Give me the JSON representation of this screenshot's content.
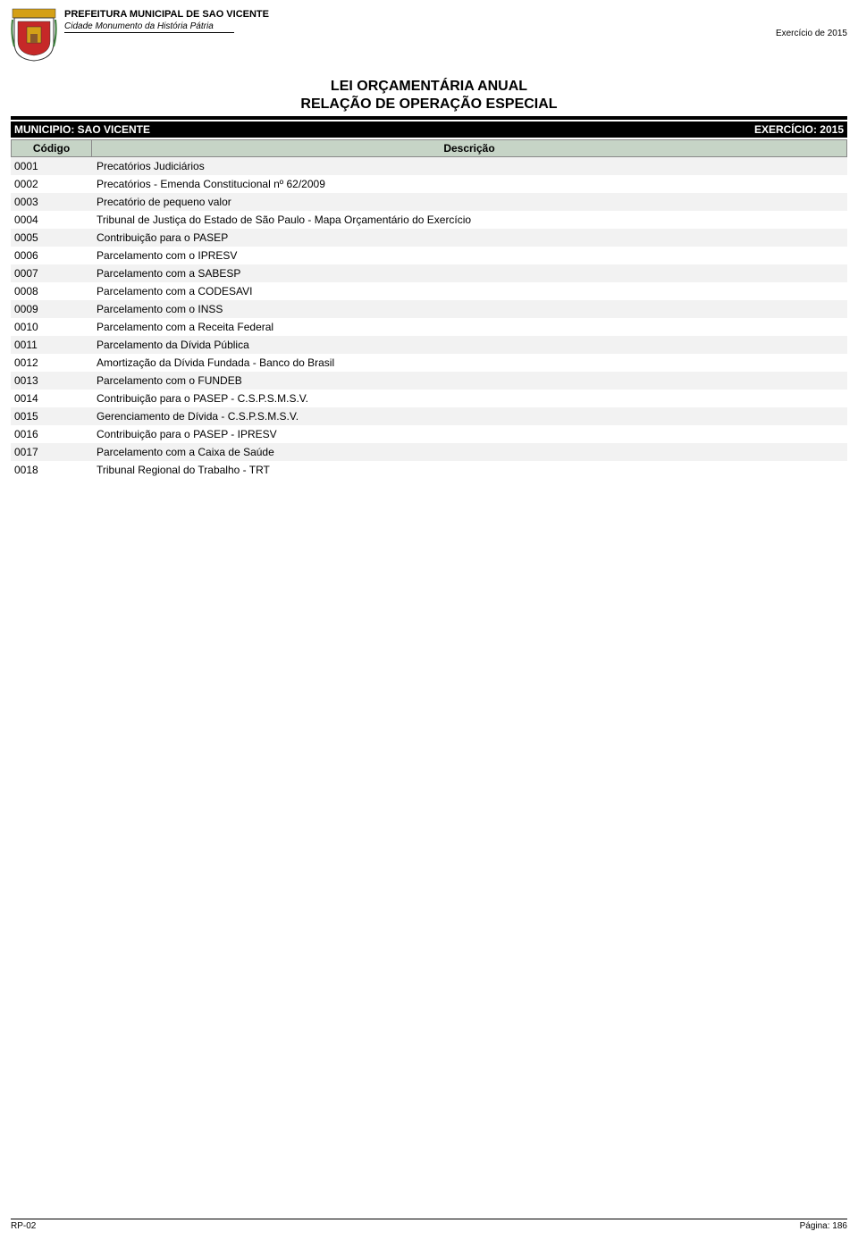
{
  "header": {
    "org_name": "PREFEITURA MUNICIPAL DE SAO VICENTE",
    "tagline": "Cidade Monumento da História Pátria",
    "exercise_year": "Exercício de 2015"
  },
  "title": {
    "line1": "LEI ORÇAMENTÁRIA ANUAL",
    "line2": "RELAÇÃO DE OPERAÇÃO ESPECIAL"
  },
  "muni_bar": {
    "left": "MUNICIPIO: SAO VICENTE",
    "right": "EXERCÍCIO: 2015"
  },
  "columns": {
    "codigo": "Código",
    "descricao": "Descrição"
  },
  "rows": [
    {
      "codigo": "0001",
      "descricao": "Precatórios Judiciários"
    },
    {
      "codigo": "0002",
      "descricao": "Precatórios - Emenda Constitucional nº 62/2009"
    },
    {
      "codigo": "0003",
      "descricao": "Precatório de pequeno valor"
    },
    {
      "codigo": "0004",
      "descricao": "Tribunal de Justiça do Estado de São Paulo - Mapa Orçamentário do Exercício"
    },
    {
      "codigo": "0005",
      "descricao": "Contribuição para o PASEP"
    },
    {
      "codigo": "0006",
      "descricao": "Parcelamento com o IPRESV"
    },
    {
      "codigo": "0007",
      "descricao": "Parcelamento com a SABESP"
    },
    {
      "codigo": "0008",
      "descricao": "Parcelamento com a CODESAVI"
    },
    {
      "codigo": "0009",
      "descricao": "Parcelamento com o INSS"
    },
    {
      "codigo": "0010",
      "descricao": "Parcelamento com a Receita Federal"
    },
    {
      "codigo": "0011",
      "descricao": "Parcelamento da Dívida Pública"
    },
    {
      "codigo": "0012",
      "descricao": "Amortização da Dívida Fundada - Banco do Brasil"
    },
    {
      "codigo": "0013",
      "descricao": "Parcelamento com o FUNDEB"
    },
    {
      "codigo": "0014",
      "descricao": "Contribuição para o PASEP - C.S.P.S.M.S.V."
    },
    {
      "codigo": "0015",
      "descricao": "Gerenciamento de Dívida - C.S.P.S.M.S.V."
    },
    {
      "codigo": "0016",
      "descricao": "Contribuição para o PASEP - IPRESV"
    },
    {
      "codigo": "0017",
      "descricao": "Parcelamento com a Caixa de Saúde"
    },
    {
      "codigo": "0018",
      "descricao": "Tribunal Regional do Trabalho - TRT"
    }
  ],
  "footer": {
    "left": "RP-02",
    "right": "Página: 186"
  },
  "coat_colors": {
    "shield_bg": "#ffffff",
    "shield_border": "#333333",
    "red": "#c62828",
    "gold": "#d4a017",
    "green": "#3a7d3a"
  }
}
